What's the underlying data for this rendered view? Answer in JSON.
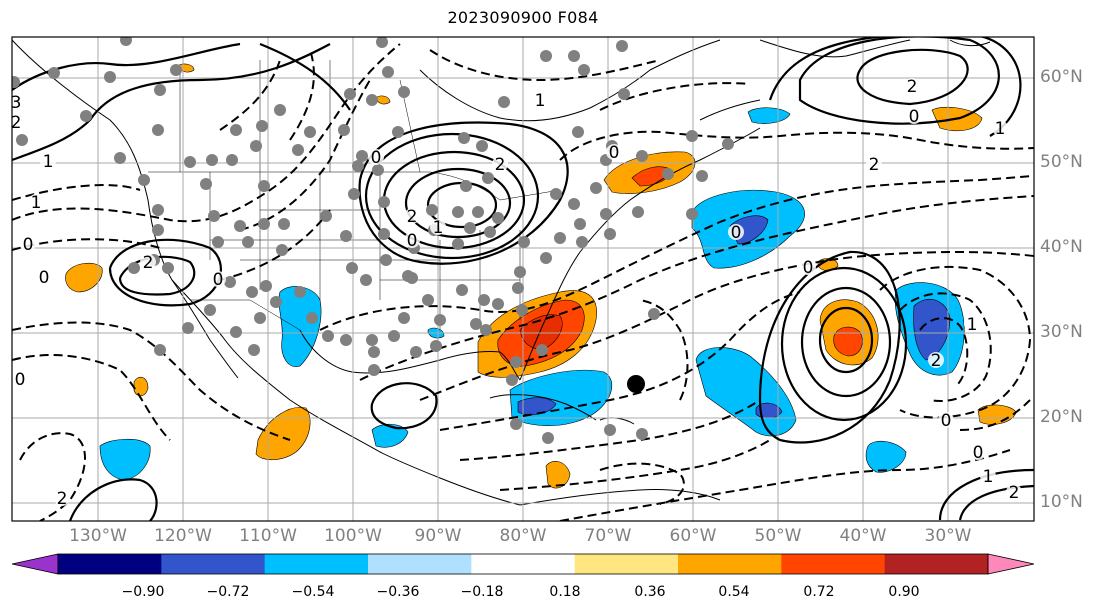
{
  "title": "2023090900 F084",
  "lat_labels": [
    "60°N",
    "50°N",
    "40°N",
    "30°N",
    "20°N",
    "10°N"
  ],
  "lon_labels": [
    "130°W",
    "120°W",
    "110°W",
    "100°W",
    "90°W",
    "80°W",
    "70°W",
    "60°W",
    "50°W",
    "40°W",
    "30°W"
  ],
  "colorbar": {
    "ticks": [
      "−0.90",
      "−0.72",
      "−0.54",
      "−0.36",
      "−0.18",
      "0.18",
      "0.36",
      "0.54",
      "0.72",
      "0.90"
    ],
    "colors": [
      "#9933cc",
      "#000080",
      "#3355cc",
      "#00bfff",
      "#b0e0ff",
      "#ffffff",
      "#ffe680",
      "#ffa500",
      "#ff4500",
      "#b22222",
      "#ff88bb"
    ]
  },
  "contour_labels": [
    "0",
    "1",
    "2",
    "3",
    "0",
    "1",
    "2",
    "0",
    "1",
    "2",
    "0",
    "0",
    "1",
    "2",
    "0",
    "0",
    "2",
    "0",
    "1",
    "2",
    "0",
    "0",
    "1",
    "2",
    "0",
    "2",
    "0",
    "1",
    "2"
  ],
  "map_colors": {
    "orange": "#ffa500",
    "red": "#ff4500",
    "deep_red": "#e62e00",
    "light_blue": "#00bfff",
    "blue": "#3355cc",
    "grid": "#aaaaaa",
    "dot": "#808080"
  }
}
